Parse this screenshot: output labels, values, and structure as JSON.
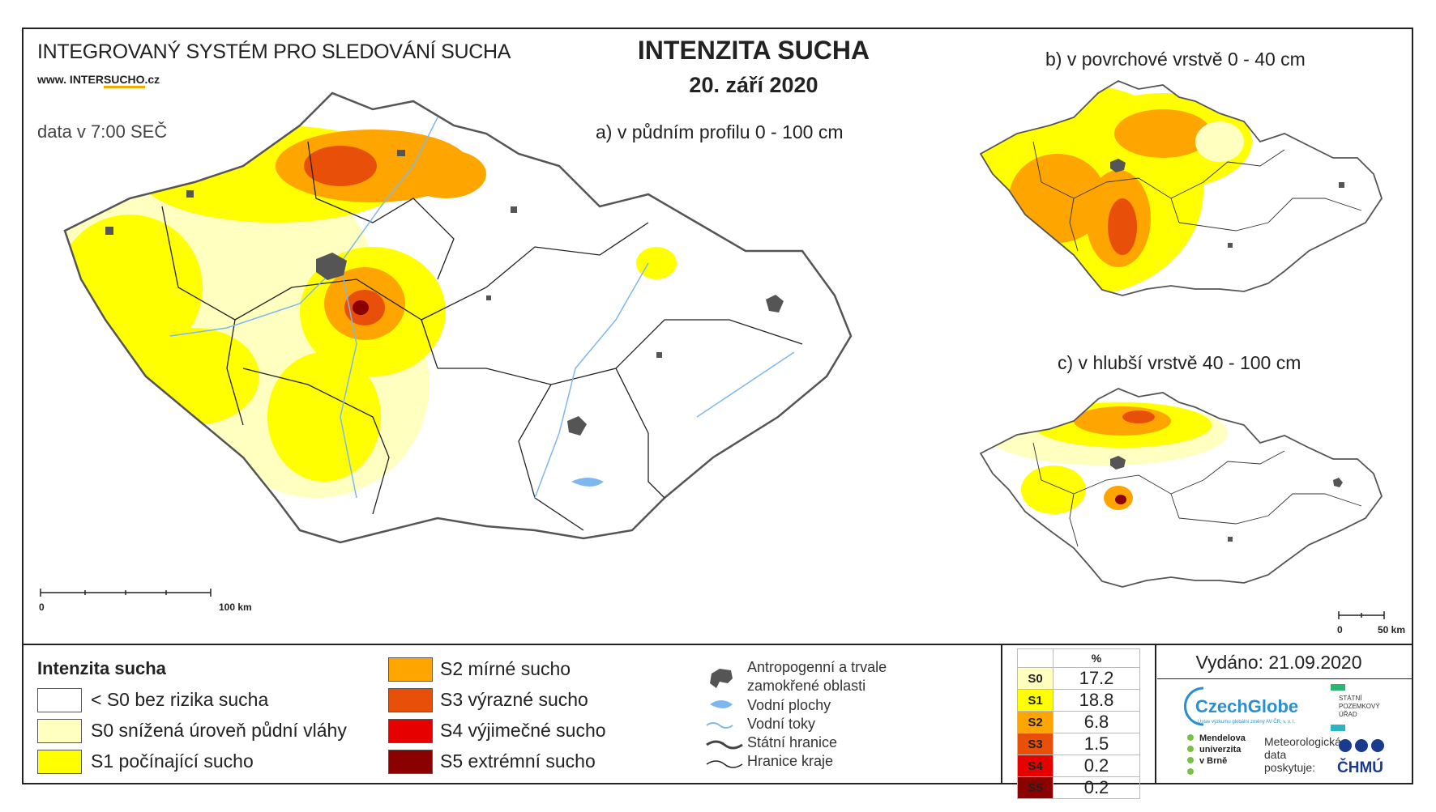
{
  "header": {
    "system_title": "INTEGROVANÝ SYSTÉM PRO SLEDOVÁNÍ SUCHA",
    "website_prefix": "www. INTER",
    "website_highlight": "SUCHO",
    "website_suffix": ".cz",
    "data_time": "data v 7:00 SEČ",
    "main_title": "INTENZITA SUCHA",
    "main_date": "20. září 2020"
  },
  "maps": {
    "a_label": "a) v půdním profilu 0 - 100 cm",
    "b_label": "b) v povrchové vrstvě 0 - 40 cm",
    "c_label": "c) v hlubší vrstvě 40 - 100 cm",
    "scale_a": {
      "start": "0",
      "end": "100 km"
    },
    "scale_c": {
      "start": "0",
      "end": "50 km"
    }
  },
  "legend": {
    "title": "Intenzita sucha",
    "classes": [
      {
        "label": "< S0 bez rizika sucha",
        "color": "#ffffff"
      },
      {
        "label": "S0 snížená úroveň půdní vláhy",
        "color": "#ffffc0"
      },
      {
        "label": "S1 počínající sucho",
        "color": "#ffff00"
      },
      {
        "label": "S2 mírné sucho",
        "color": "#ffa500"
      },
      {
        "label": "S3 výrazné sucho",
        "color": "#e8500a"
      },
      {
        "label": "S4 výjimečné sucho",
        "color": "#e60000"
      },
      {
        "label": "S5 extrémní sucho",
        "color": "#8b0000"
      }
    ],
    "symbols": {
      "urban_line1": "Antropogenní a trvale",
      "urban_line2": "zamokřené oblasti",
      "water_bodies": "Vodní plochy",
      "rivers": "Vodní toky",
      "state_border": "Státní hranice",
      "region_border": "Hranice kraje"
    }
  },
  "stats": {
    "header": "%",
    "rows": [
      {
        "cls": "S0",
        "value": "17.2",
        "color": "#ffffc0",
        "text_color": "#000000"
      },
      {
        "cls": "S1",
        "value": "18.8",
        "color": "#ffff00",
        "text_color": "#000000"
      },
      {
        "cls": "S2",
        "value": "6.8",
        "color": "#ffa500",
        "text_color": "#000000"
      },
      {
        "cls": "S3",
        "value": "1.5",
        "color": "#e8500a",
        "text_color": "#000000"
      },
      {
        "cls": "S4",
        "value": "0.2",
        "color": "#e60000",
        "text_color": "#000000"
      },
      {
        "cls": "S5",
        "value": "0.2",
        "color": "#8b0000",
        "text_color": "#000000"
      }
    ]
  },
  "footer": {
    "issued": "Vydáno: 21.09.2020",
    "czechglobe": "CzechGlobe",
    "czechglobe_sub": "Ústav výzkumu globální změny AV ČR, v. v. i.",
    "mendel_line1": "Mendelova",
    "mendel_line2": "univerzita",
    "mendel_line3": "v Brně",
    "spu_line1": "STÁTNÍ",
    "spu_line2": "POZEMKOVÝ",
    "spu_line3": "ÚŘAD",
    "meteo_line1": "Meteorologická",
    "meteo_line2": "data",
    "meteo_line3": "poskytuje:",
    "chmu": "ČHMÚ"
  }
}
